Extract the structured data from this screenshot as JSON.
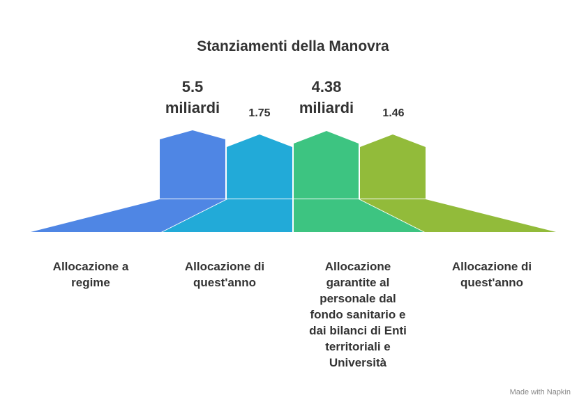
{
  "title": "Stanziamenti della Manovra",
  "items": [
    {
      "value": "5.5 miliardi",
      "label": "Allocazione a regime"
    },
    {
      "value": "1.75",
      "label": "Allocazione di quest'anno"
    },
    {
      "value": "4.38 miliardi",
      "label": "Allocazione garantite al personale dal fondo sanitario e dai bilanci di Enti territoriali e Università"
    },
    {
      "value": "1.46",
      "label": "Allocazione di quest'anno"
    }
  ],
  "footer": "Made with Napkin"
}
